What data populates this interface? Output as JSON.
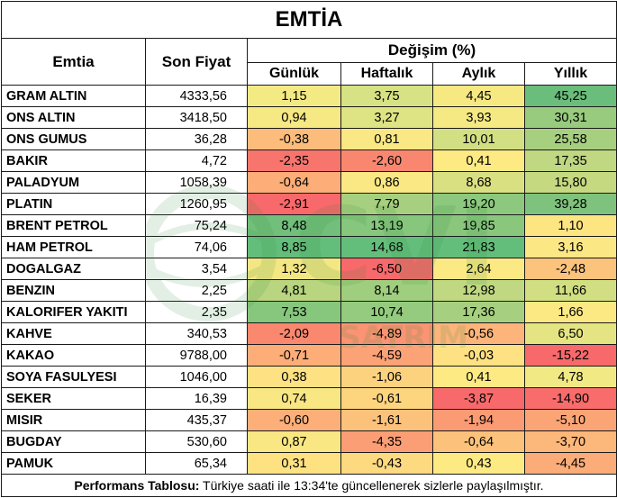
{
  "title": "EMTİA",
  "headers": {
    "commodity": "Emtia",
    "last_price": "Son Fiyat",
    "change": "Değişim (%)",
    "daily": "Günlük",
    "weekly": "Haftalık",
    "monthly": "Aylık",
    "yearly": "Yıllık"
  },
  "rows": [
    {
      "name": "GRAM ALTIN",
      "price": "4333,56",
      "daily": "1,15",
      "weekly": "3,75",
      "monthly": "4,45",
      "yearly": "45,25",
      "colors": [
        "#f4ea84",
        "#d6e283",
        "#f6e982",
        "#6bbd7b"
      ]
    },
    {
      "name": "ONS ALTIN",
      "price": "3418,50",
      "daily": "0,94",
      "weekly": "3,27",
      "monthly": "3,93",
      "yearly": "30,31",
      "colors": [
        "#f6e883",
        "#dee383",
        "#f5e983",
        "#98cb7e"
      ]
    },
    {
      "name": "ONS GUMUS",
      "price": "36,28",
      "daily": "-0,38",
      "weekly": "0,81",
      "monthly": "10,01",
      "yearly": "25,58",
      "colors": [
        "#fcbc7b",
        "#f9e883",
        "#d2df82",
        "#a6d07f"
      ]
    },
    {
      "name": "BAKIR",
      "price": "4,72",
      "daily": "-2,35",
      "weekly": "-2,60",
      "monthly": "0,41",
      "yearly": "17,35",
      "colors": [
        "#f8756d",
        "#f98770",
        "#feea83",
        "#c0d881"
      ]
    },
    {
      "name": "PALADYUM",
      "price": "1058,39",
      "daily": "-0,64",
      "weekly": "0,86",
      "monthly": "8,68",
      "yearly": "15,80",
      "colors": [
        "#fcad78",
        "#f9e883",
        "#d9e082",
        "#c5d980"
      ]
    },
    {
      "name": "PLATIN",
      "price": "1260,95",
      "daily": "-2,91",
      "weekly": "7,79",
      "monthly": "19,20",
      "yearly": "39,28",
      "colors": [
        "#f8696b",
        "#a6d07f",
        "#8cc87e",
        "#7fc27d"
      ]
    },
    {
      "name": "BRENT PETROL",
      "price": "75,24",
      "daily": "8,48",
      "weekly": "13,19",
      "monthly": "19,85",
      "yearly": "1,10",
      "colors": [
        "#71bf7b",
        "#86c67d",
        "#89c77d",
        "#fde582"
      ]
    },
    {
      "name": "HAM PETROL",
      "price": "74,06",
      "daily": "8,85",
      "weekly": "14,68",
      "monthly": "21,83",
      "yearly": "3,16",
      "colors": [
        "#63be7b",
        "#63be7b",
        "#63be7b",
        "#fbe783"
      ]
    },
    {
      "name": "DOGALGAZ",
      "price": "3,54",
      "daily": "1,32",
      "weekly": "-6,50",
      "monthly": "2,64",
      "yearly": "-2,48",
      "colors": [
        "#f3e783",
        "#f8696b",
        "#fbe983",
        "#fcc37c"
      ]
    },
    {
      "name": "BENZIN",
      "price": "2,25",
      "daily": "4,81",
      "weekly": "8,14",
      "monthly": "12,98",
      "yearly": "11,66",
      "colors": [
        "#b9d580",
        "#a0ce7f",
        "#c0d881",
        "#d1df82"
      ]
    },
    {
      "name": "KALORIFER YAKITI",
      "price": "2,35",
      "daily": "7,53",
      "weekly": "10,74",
      "monthly": "17,36",
      "yearly": "1,66",
      "colors": [
        "#87c67d",
        "#94cb7e",
        "#a6d07f",
        "#fde983"
      ]
    },
    {
      "name": "KAHVE",
      "price": "340,53",
      "daily": "-2,09",
      "weekly": "-4,89",
      "monthly": "-0,56",
      "yearly": "6,50",
      "colors": [
        "#f9886f",
        "#fa9473",
        "#fcb47a",
        "#e5e483"
      ]
    },
    {
      "name": "KAKAO",
      "price": "9788,00",
      "daily": "-0,71",
      "weekly": "-4,59",
      "monthly": "-0,03",
      "yearly": "-15,22",
      "colors": [
        "#fcad78",
        "#fba276",
        "#fee182",
        "#f8696b"
      ]
    },
    {
      "name": "SOYA FASULYESI",
      "price": "1046,00",
      "daily": "0,38",
      "weekly": "-1,06",
      "monthly": "0,41",
      "yearly": "4,78",
      "colors": [
        "#fde182",
        "#fdd27f",
        "#feea83",
        "#f1e984"
      ]
    },
    {
      "name": "SEKER",
      "price": "16,39",
      "daily": "0,74",
      "weekly": "-0,61",
      "monthly": "-3,87",
      "yearly": "-14,90",
      "colors": [
        "#f9e783",
        "#fdd57f",
        "#f8696b",
        "#f86c6b"
      ]
    },
    {
      "name": "MISIR",
      "price": "435,37",
      "daily": "-0,60",
      "weekly": "-1,61",
      "monthly": "-1,94",
      "yearly": "-5,10",
      "colors": [
        "#fcaf78",
        "#fcc27c",
        "#fa9b74",
        "#fba576"
      ]
    },
    {
      "name": "BUGDAY",
      "price": "530,60",
      "daily": "0,87",
      "weekly": "-4,35",
      "monthly": "-0,64",
      "yearly": "-3,70",
      "colors": [
        "#f8e783",
        "#fb9e75",
        "#fcc27c",
        "#fcb77a"
      ]
    },
    {
      "name": "PAMUK",
      "price": "65,34",
      "daily": "0,31",
      "weekly": "-0,43",
      "monthly": "0,43",
      "yearly": "-4,45",
      "colors": [
        "#fee282",
        "#fdd980",
        "#feea83",
        "#fbac78"
      ]
    }
  ],
  "footer": {
    "label": "Performans Tablosu:",
    "text": " Türkiye saati ile 13:34'te güncellenerek sizlerle paylaşılmıştır."
  },
  "watermark": {
    "logo_icon": "globe-logo-icon",
    "text": "SATRIM"
  }
}
